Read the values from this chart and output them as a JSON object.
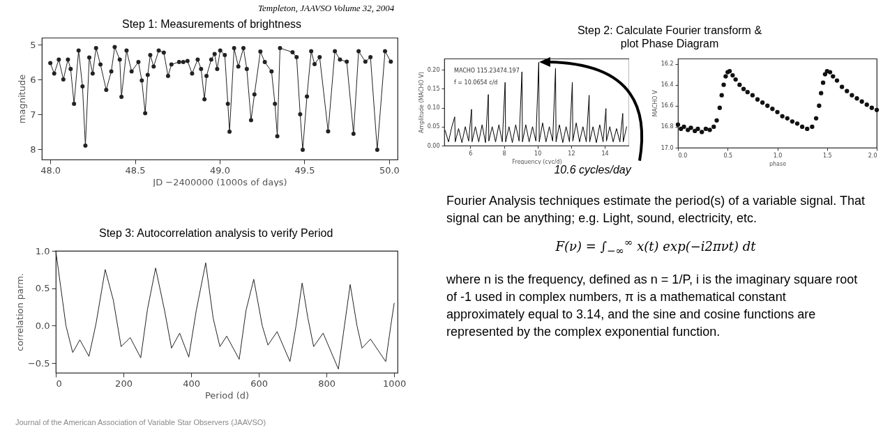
{
  "chart_data": [
    {
      "type": "line",
      "title": "Step 1: Measurements of brightness",
      "xlabel": "JD −2400000 (1000s of days)",
      "ylabel": "magnitude",
      "marker": "circle",
      "annotations": [
        "Templeton,   JAAVSO Volume 32, 2004"
      ],
      "xlim": [
        47.95,
        50.05
      ],
      "ylim": [
        8.3,
        4.8
      ],
      "xticks": [
        {
          "value": 48,
          "label": "48.0"
        },
        48.5,
        {
          "value": 49,
          "label": "49.0"
        },
        49.5,
        {
          "value": 50,
          "label": "50.0"
        }
      ],
      "yticks": [
        5,
        6,
        7,
        8
      ],
      "x": [
        48.0,
        48.023,
        48.05,
        48.077,
        48.104,
        48.12,
        48.14,
        48.167,
        48.19,
        48.207,
        48.23,
        48.25,
        48.27,
        48.296,
        48.33,
        48.36,
        48.38,
        48.41,
        48.42,
        48.45,
        48.48,
        48.52,
        48.54,
        48.56,
        48.575,
        48.59,
        48.61,
        48.64,
        48.67,
        48.695,
        48.715,
        48.76,
        48.785,
        48.81,
        48.837,
        48.87,
        48.89,
        48.91,
        48.922,
        48.95,
        48.97,
        48.985,
        49.003,
        49.03,
        49.048,
        49.058,
        49.085,
        49.11,
        49.14,
        49.16,
        49.185,
        49.205,
        49.24,
        49.266,
        49.306,
        49.326,
        49.34,
        49.356,
        49.43,
        49.454,
        49.475,
        49.49,
        49.515,
        49.54,
        49.56,
        49.59,
        49.64,
        49.68,
        49.71,
        49.75,
        49.79,
        49.82,
        49.86,
        49.89,
        49.93,
        49.976,
        50.01
      ],
      "series": [
        {
          "color": "#222222",
          "values": [
            5.53,
            5.83,
            5.43,
            6.0,
            5.43,
            5.7,
            6.7,
            5.17,
            6.2,
            7.9,
            5.37,
            5.83,
            5.1,
            5.57,
            6.3,
            5.77,
            5.07,
            5.43,
            6.5,
            5.17,
            5.77,
            5.5,
            6.03,
            6.97,
            5.87,
            5.3,
            5.63,
            5.17,
            5.23,
            5.9,
            5.57,
            5.5,
            5.5,
            5.47,
            5.83,
            5.43,
            5.7,
            6.57,
            5.9,
            5.43,
            5.27,
            5.7,
            5.17,
            5.3,
            6.7,
            7.5,
            5.1,
            5.63,
            5.1,
            5.7,
            7.17,
            6.43,
            5.2,
            5.5,
            5.77,
            6.7,
            7.63,
            5.1,
            5.22,
            5.36,
            7.0,
            8.02,
            6.49,
            5.19,
            5.56,
            5.36,
            7.49,
            5.19,
            5.43,
            5.49,
            7.56,
            5.19,
            5.49,
            5.36,
            8.02,
            5.19,
            5.49
          ]
        }
      ]
    },
    {
      "type": "line",
      "title": "Step 2: Calculate Fourier transform & plot Phase Diagram",
      "xlabel": "Frequency (cyc/d)",
      "ylabel": "Amplitude (MACHO V)",
      "annotations": [
        "MACHO 115.23474.197",
        "f = 10.0654 c/d",
        "10.6 cycles/day"
      ],
      "xlim": [
        4.45,
        15.45
      ],
      "ylim": [
        0,
        0.23
      ],
      "xticks": [
        6,
        8,
        10,
        12,
        14
      ],
      "yticks": [
        {
          "value": 0,
          "label": "0.00"
        },
        0.05,
        {
          "value": 0.1,
          "label": "0.10"
        },
        0.15,
        {
          "value": 0.2,
          "label": "0.20"
        }
      ],
      "x": [
        4.5,
        4.7,
        4.9,
        5.07,
        5.1,
        5.3,
        5.5,
        5.7,
        5.9,
        6.07,
        6.1,
        6.3,
        6.5,
        6.7,
        6.9,
        7.07,
        7.1,
        7.3,
        7.5,
        7.7,
        7.9,
        8.07,
        8.1,
        8.3,
        8.5,
        8.7,
        8.9,
        9.07,
        9.1,
        9.3,
        9.5,
        9.7,
        9.9,
        10.07,
        10.1,
        10.3,
        10.5,
        10.7,
        10.9,
        11.07,
        11.1,
        11.3,
        11.5,
        11.7,
        11.9,
        12.07,
        12.1,
        12.3,
        12.5,
        12.7,
        12.9,
        13.07,
        13.1,
        13.3,
        13.5,
        13.7,
        13.9,
        14.07,
        14.1,
        14.3,
        14.5,
        14.7,
        14.9,
        15.07,
        15.1,
        15.3
      ],
      "series": [
        {
          "color": "#000000",
          "values": [
            0.04,
            0.01,
            0.05,
            0.076,
            0.01,
            0.045,
            0.008,
            0.05,
            0.012,
            0.096,
            0.01,
            0.05,
            0.01,
            0.055,
            0.008,
            0.135,
            0.012,
            0.05,
            0.01,
            0.055,
            0.01,
            0.167,
            0.01,
            0.05,
            0.008,
            0.055,
            0.012,
            0.195,
            0.01,
            0.055,
            0.01,
            0.05,
            0.012,
            0.22,
            0.01,
            0.06,
            0.01,
            0.05,
            0.012,
            0.204,
            0.01,
            0.055,
            0.008,
            0.05,
            0.01,
            0.167,
            0.012,
            0.06,
            0.01,
            0.05,
            0.01,
            0.133,
            0.01,
            0.05,
            0.008,
            0.055,
            0.01,
            0.098,
            0.012,
            0.05,
            0.01,
            0.045,
            0.01,
            0.085,
            0.01,
            0.05
          ]
        }
      ]
    },
    {
      "type": "scatter",
      "xlabel": "phase",
      "ylabel": "MACHO V",
      "marker": "circle",
      "xlim": [
        0,
        2
      ],
      "ylim": [
        17.0,
        16.15
      ],
      "xticks": [
        {
          "value": 0,
          "label": "0.0"
        },
        0.5,
        {
          "value": 1,
          "label": "1.0"
        },
        1.5,
        {
          "value": 2,
          "label": "2.0"
        }
      ],
      "yticks": [
        16.2,
        16.4,
        16.6,
        16.8,
        {
          "value": 17,
          "label": "17.0"
        }
      ],
      "x": [
        0.0,
        0.03,
        0.06,
        0.1,
        0.13,
        0.17,
        0.2,
        0.24,
        0.28,
        0.32,
        0.36,
        0.39,
        0.42,
        0.44,
        0.46,
        0.48,
        0.5,
        0.52,
        0.55,
        0.58,
        0.62,
        0.66,
        0.7,
        0.75,
        0.8,
        0.85,
        0.9,
        0.95,
        1.0,
        1.05,
        1.1,
        1.15,
        1.2,
        1.25,
        1.3,
        1.35,
        1.39,
        1.42,
        1.44,
        1.46,
        1.48,
        1.5,
        1.53,
        1.56,
        1.6,
        1.65,
        1.7,
        1.75,
        1.8,
        1.85,
        1.9,
        1.95,
        2.0
      ],
      "series": [
        {
          "color": "#111111",
          "values": [
            16.78,
            16.82,
            16.8,
            16.83,
            16.81,
            16.84,
            16.82,
            16.85,
            16.82,
            16.83,
            16.8,
            16.74,
            16.62,
            16.5,
            16.4,
            16.32,
            16.28,
            16.27,
            16.31,
            16.35,
            16.4,
            16.44,
            16.47,
            16.5,
            16.54,
            16.57,
            16.6,
            16.63,
            16.66,
            16.7,
            16.72,
            16.75,
            16.77,
            16.8,
            16.82,
            16.8,
            16.72,
            16.6,
            16.48,
            16.38,
            16.3,
            16.27,
            16.28,
            16.32,
            16.36,
            16.42,
            16.46,
            16.5,
            16.53,
            16.56,
            16.59,
            16.62,
            16.64
          ]
        }
      ]
    },
    {
      "type": "line",
      "title": "Step 3: Autocorrelation analysis to verify Period",
      "xlabel": "Period (d)",
      "ylabel": "correlation  parm.",
      "annotations": [
        "Journal of the American Association of Variable Star Observers (JAAVSO)"
      ],
      "xlim": [
        0,
        1010
      ],
      "ylim": [
        -0.63,
        1.0
      ],
      "xticks": [
        0,
        200,
        400,
        600,
        800,
        1000
      ],
      "yticks": [
        {
          "value": -0.5,
          "label": "−0.5"
        },
        {
          "value": 0,
          "label": "0.0"
        },
        0.5,
        {
          "value": 1,
          "label": "1.0"
        }
      ],
      "x": [
        0,
        15,
        30,
        50,
        71,
        98,
        119,
        146,
        170,
        193,
        220,
        251,
        271,
        295,
        322,
        342,
        366,
        393,
        415,
        443,
        465,
        485,
        505,
        542,
        562,
        585,
        610,
        627,
        654,
        692,
        710,
        728,
        745,
        762,
        790,
        835,
        850,
        870,
        890,
        905,
        930,
        975,
        990,
        1000
      ],
      "series": [
        {
          "color": "#222222",
          "values": [
            1.0,
            0.5,
            0.0,
            -0.36,
            -0.19,
            -0.41,
            0.03,
            0.75,
            0.34,
            -0.28,
            -0.16,
            -0.43,
            0.22,
            0.77,
            0.19,
            -0.3,
            -0.1,
            -0.42,
            0.2,
            0.84,
            0.1,
            -0.28,
            -0.14,
            -0.45,
            0.2,
            0.62,
            0.0,
            -0.26,
            -0.08,
            -0.48,
            0.0,
            0.57,
            0.1,
            -0.28,
            -0.1,
            -0.58,
            -0.1,
            0.55,
            0.0,
            -0.3,
            -0.18,
            -0.48,
            0.0,
            0.3
          ]
        }
      ]
    },
    {
      "type": "other",
      "annotations": [
        "Fourier Analysis techniques estimate the period(s) of a variable signal. That signal can be anything; e.g. Light, sound, electricity, etc.",
        "F(ν) =  ∫$_{−∞}$$^{∞}$ x(t) exp(−i2πνt) dt",
        "where n is the frequency, defined as n = 1/P, i is the imaginary square root of -1 used in complex numbers, π is a mathematical constant approximately equal to 3.14, and the sine and cosine functions are represented by the complex exponential function."
      ]
    }
  ]
}
